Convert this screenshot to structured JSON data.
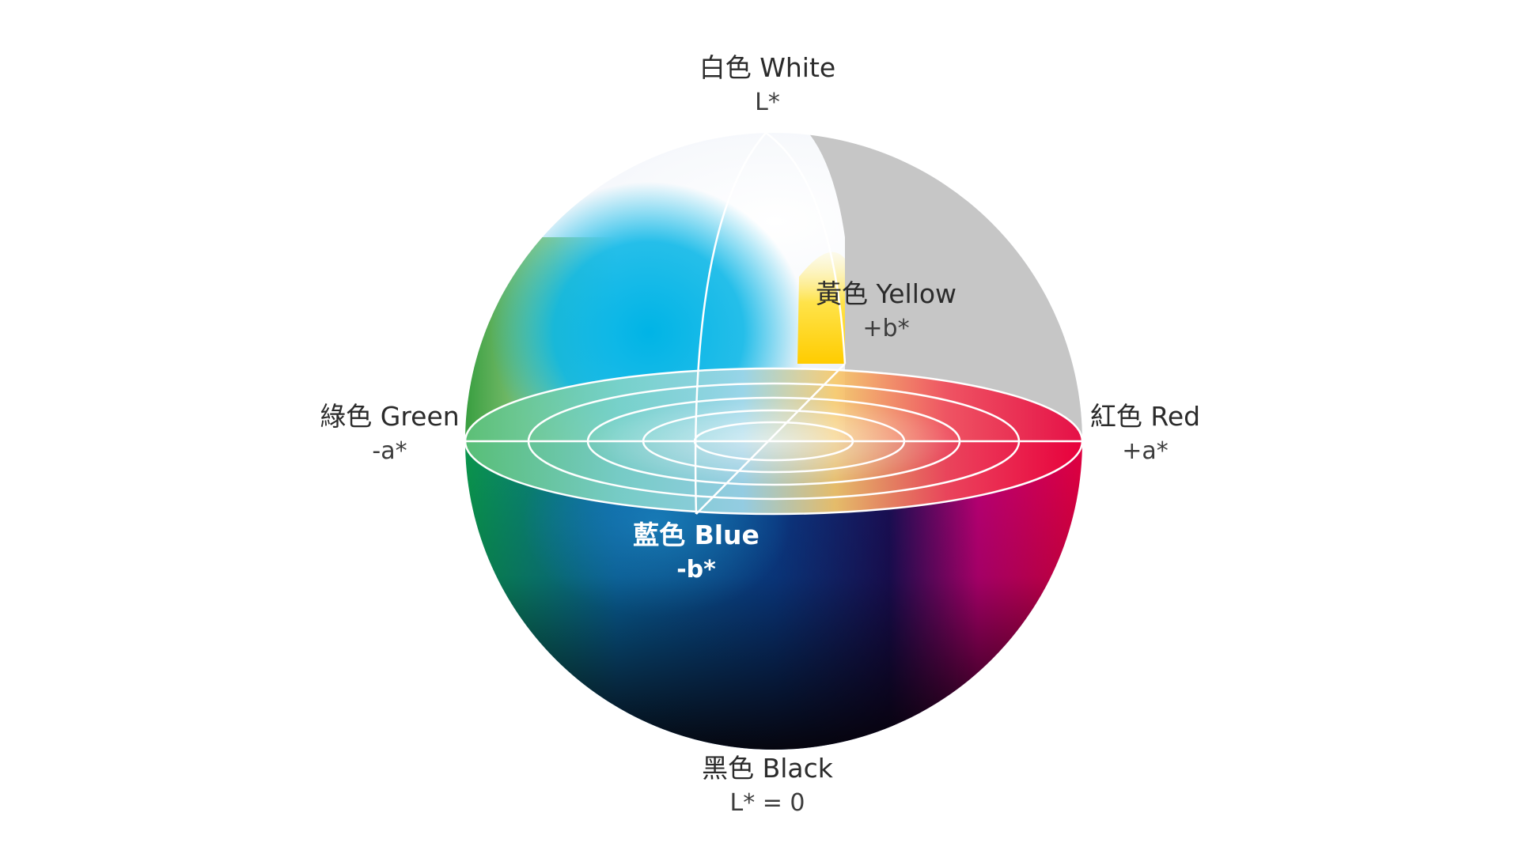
{
  "diagram": {
    "labels": {
      "white": {
        "name": "白色 White",
        "axis": "L*"
      },
      "yellow": {
        "name": "黃色 Yellow",
        "axis": "+b*"
      },
      "green": {
        "name": "綠色 Green",
        "axis": "-a*"
      },
      "red": {
        "name": "紅色 Red",
        "axis": "+a*"
      },
      "blue": {
        "name": "藍色 Blue",
        "axis": "-b*"
      },
      "black": {
        "name": "黑色 Black",
        "axis": "L* = 0"
      }
    },
    "colors": {
      "white": "#ffffff",
      "yellow": "#ffd200",
      "green": "#1a9e45",
      "cyan": "#00b4e6",
      "red": "#e8003c",
      "magenta": "#e2007a",
      "blue": "#0a4f9c",
      "navy": "#1a1050",
      "black": "#0a0508",
      "cutaway_gray": "#c6c6c6"
    }
  }
}
